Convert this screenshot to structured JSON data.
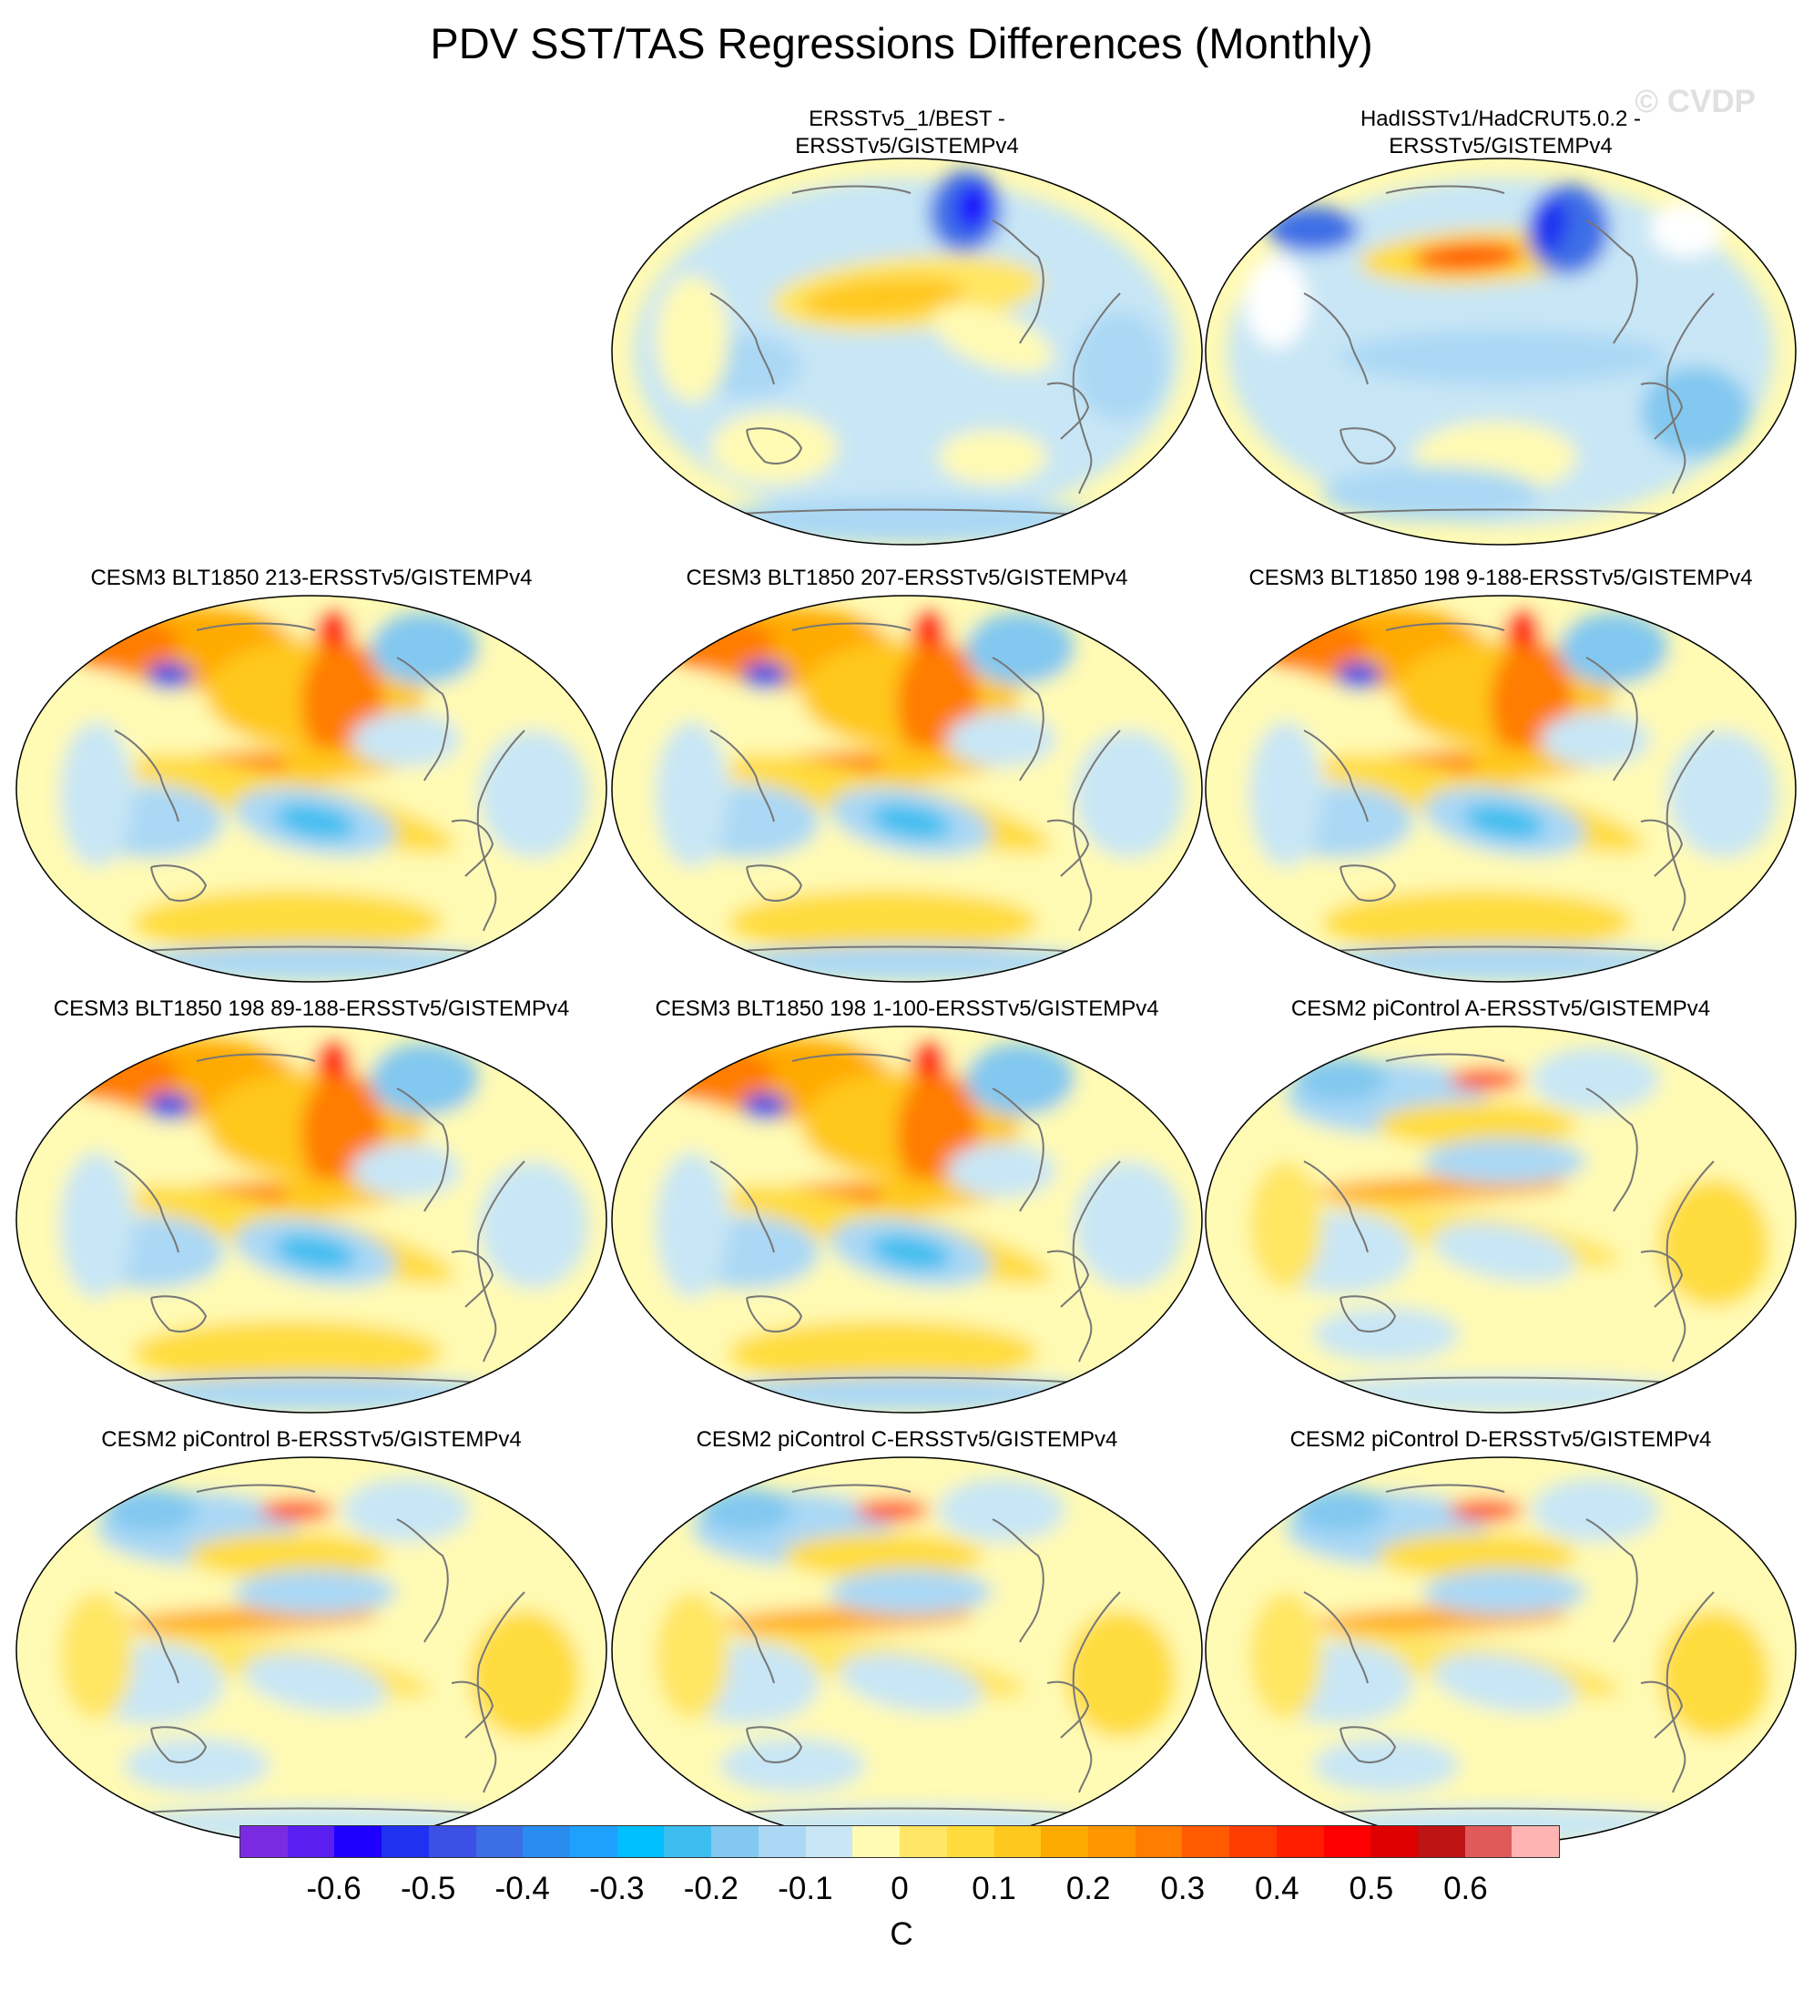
{
  "title": "PDV SST/TAS Regressions Differences (Monthly)",
  "watermark": "© CVDP",
  "panels": [
    {
      "title": "ERSSTv5_1/BEST -\nERSSTv5/GISTEMPv4",
      "row": 0,
      "col": 1,
      "palette": "obs1"
    },
    {
      "title": "HadISSTv1/HadCRUT5.0.2 -\nERSSTv5/GISTEMPv4",
      "row": 0,
      "col": 2,
      "palette": "obs2"
    },
    {
      "title": "CESM3 BLT1850 213-ERSSTv5/GISTEMPv4",
      "row": 1,
      "col": 0,
      "palette": "cesm3"
    },
    {
      "title": "CESM3 BLT1850 207-ERSSTv5/GISTEMPv4",
      "row": 1,
      "col": 1,
      "palette": "cesm3"
    },
    {
      "title": "CESM3 BLT1850 198 9-188-ERSSTv5/GISTEMPv4",
      "row": 1,
      "col": 2,
      "palette": "cesm3"
    },
    {
      "title": "CESM3 BLT1850 198 89-188-ERSSTv5/GISTEMPv4",
      "row": 2,
      "col": 0,
      "palette": "cesm3"
    },
    {
      "title": "CESM3 BLT1850 198 1-100-ERSSTv5/GISTEMPv4",
      "row": 2,
      "col": 1,
      "palette": "cesm3"
    },
    {
      "title": "CESM2 piControl A-ERSSTv5/GISTEMPv4",
      "row": 2,
      "col": 2,
      "palette": "cesm2"
    },
    {
      "title": "CESM2 piControl B-ERSSTv5/GISTEMPv4",
      "row": 3,
      "col": 0,
      "palette": "cesm2"
    },
    {
      "title": "CESM2 piControl C-ERSSTv5/GISTEMPv4",
      "row": 3,
      "col": 1,
      "palette": "cesm2"
    },
    {
      "title": "CESM2 piControl D-ERSSTv5/GISTEMPv4",
      "row": 3,
      "col": 2,
      "palette": "cesm2"
    }
  ],
  "colorbar": {
    "colors": [
      "#7a2be2",
      "#5a1ef0",
      "#1e00ff",
      "#1e32f0",
      "#3c50e6",
      "#3c6ee6",
      "#2b8cf0",
      "#1ea0ff",
      "#00beff",
      "#3cbef0",
      "#82c8f0",
      "#aad8f5",
      "#c8e6f5",
      "#fffab4",
      "#ffe664",
      "#ffdc3c",
      "#ffc81e",
      "#ffaa00",
      "#ff9600",
      "#ff7d00",
      "#ff5a00",
      "#ff3c00",
      "#ff1e00",
      "#ff0000",
      "#dc0000",
      "#be1414",
      "#e05a5a",
      "#ffb4b4"
    ],
    "tick_labels": [
      "-0.6",
      "-0.5",
      "-0.4",
      "-0.3",
      "-0.2",
      "-0.1",
      "0",
      "0.1",
      "0.2",
      "0.3",
      "0.4",
      "0.5",
      "0.6"
    ],
    "unit": "C"
  }
}
